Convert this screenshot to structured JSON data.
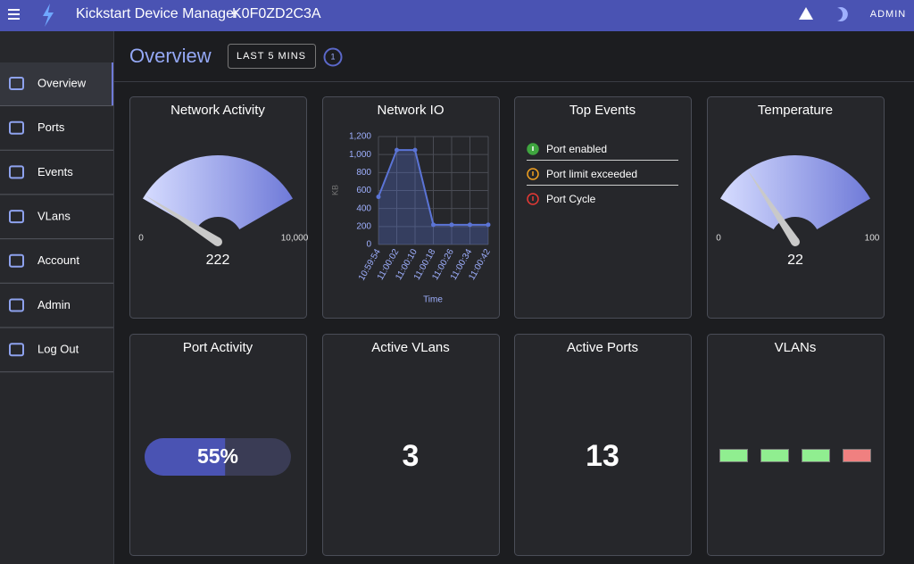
{
  "header": {
    "title": "Kickstart Device Manager",
    "device": "K0F0ZD2C3A",
    "user": "ADMIN"
  },
  "sidebar": {
    "items": [
      "Overview",
      "Ports",
      "Events",
      "VLans",
      "Account",
      "Admin",
      "Log Out"
    ]
  },
  "toolbar": {
    "title": "Overview",
    "range": "LAST 5 MINS",
    "refresh": 1
  },
  "cards": {
    "network_activity": {
      "title": "Network Activity",
      "value": 222,
      "min": 0,
      "max": {
        "value": 10000,
        "label": "10,000"
      }
    },
    "network_io": {
      "title": "Network IO",
      "chart_data": {
        "type": "line",
        "categories": [
          "10:59:54",
          "11:00:02",
          "11:00:10",
          "11:00:18",
          "11:00:26",
          "11:00:34",
          "11:00:42"
        ],
        "values": [
          530,
          1050,
          1050,
          220,
          220,
          220,
          220
        ],
        "color": "#5b74d6",
        "ylim": [
          0,
          1200
        ],
        "yticks": [
          0,
          200,
          400,
          600,
          800,
          {
            "value": 1000,
            "label": "1,000"
          },
          {
            "value": 1200,
            "label": "1,200"
          }
        ],
        "y_label": "KB",
        "x_label": "Time",
        "grid": true
      }
    },
    "top_events": {
      "title": "Top Events",
      "items": [
        {
          "text": "Port enabled",
          "color": "#3fa53f"
        },
        {
          "text": "Port limit exceeded",
          "color": "#f0a020"
        },
        {
          "text": "Port Cycle",
          "color": "#e53935"
        }
      ]
    },
    "temperature": {
      "title": "Temperature",
      "value": 22,
      "min": 0,
      "max": 100
    },
    "port_activity": {
      "title": "Port Activity",
      "value": 55,
      "value_label": "55%"
    },
    "active_vlans": {
      "title": "Active VLans",
      "value": 3
    },
    "active_ports": {
      "title": "Active Ports",
      "value": 13
    },
    "vlans": {
      "title": "VLANs",
      "ports": [
        {
          "color": "#90ee90"
        },
        {
          "color": "#90ee90"
        },
        {
          "color": "#90ee90"
        },
        {
          "color": "#f08080"
        }
      ]
    }
  }
}
